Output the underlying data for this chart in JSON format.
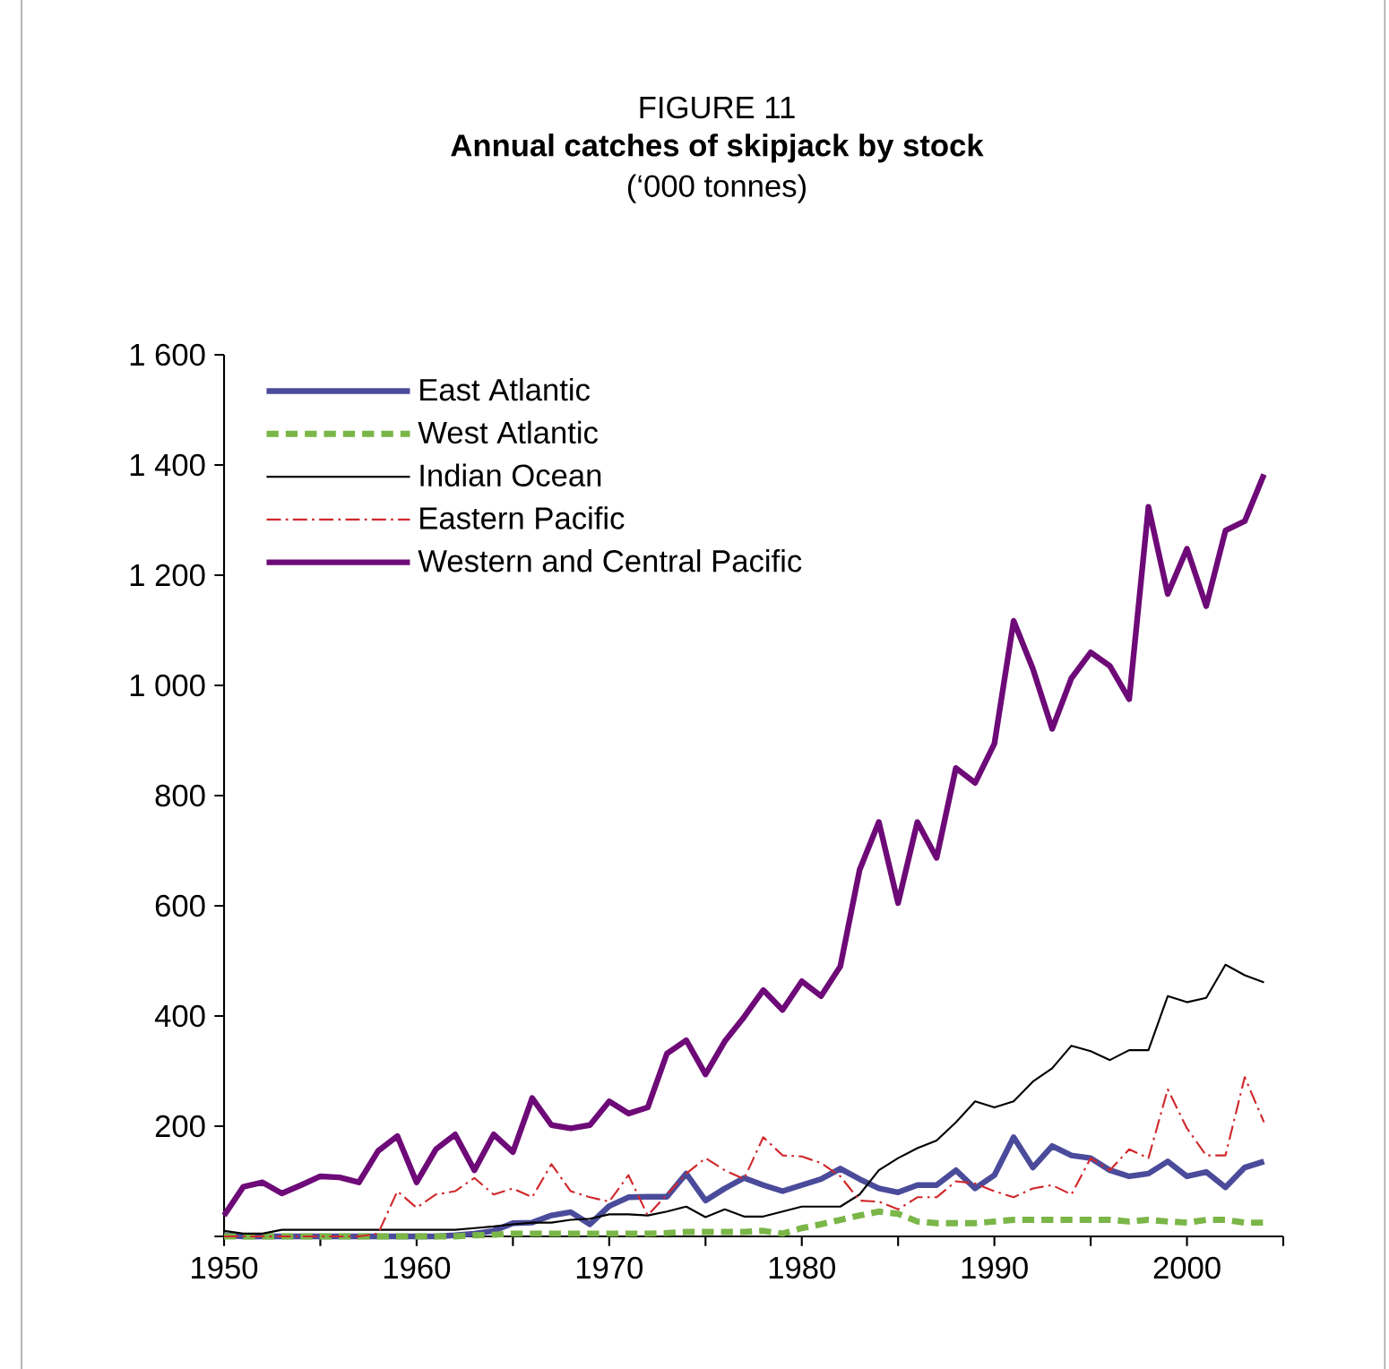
{
  "chart_data": {
    "type": "line",
    "title": "FIGURE 11",
    "subtitle": "Annual catches of skipjack by stock",
    "annotations": [
      "(‘000 tonnes)"
    ],
    "x": [
      1950,
      1951,
      1952,
      1953,
      1954,
      1955,
      1956,
      1957,
      1958,
      1959,
      1960,
      1961,
      1962,
      1963,
      1964,
      1965,
      1966,
      1967,
      1968,
      1969,
      1970,
      1971,
      1972,
      1973,
      1974,
      1975,
      1976,
      1977,
      1978,
      1979,
      1980,
      1981,
      1982,
      1983,
      1984,
      1985,
      1986,
      1987,
      1988,
      1989,
      1990,
      1991,
      1992,
      1993,
      1994,
      1995,
      1996,
      1997,
      1998,
      1999,
      2000,
      2001,
      2002,
      2003,
      2004
    ],
    "series": [
      {
        "name": "East Atlantic",
        "color": "#4b4b9b",
        "line_style": "solid",
        "values": [
          2,
          0,
          0,
          0,
          0,
          0,
          0,
          0,
          0,
          0,
          0,
          0,
          2,
          5,
          10,
          24,
          25,
          38,
          44,
          22,
          55,
          71,
          72,
          72,
          114,
          65,
          87,
          106,
          93,
          82,
          93,
          104,
          123,
          104,
          87,
          80,
          93,
          93,
          120,
          87,
          111,
          180,
          125,
          164,
          147,
          142,
          120,
          109,
          114,
          136,
          109,
          117,
          89,
          125,
          136
        ]
      },
      {
        "name": "West Atlantic",
        "color": "#7ab648",
        "line_style": "dashed",
        "values": [
          0,
          0,
          0,
          0,
          0,
          0,
          0,
          0,
          0,
          0,
          0,
          0,
          0,
          2,
          3,
          5,
          5,
          5,
          5,
          5,
          5,
          5,
          5,
          6,
          8,
          8,
          8,
          8,
          10,
          5,
          15,
          22,
          30,
          38,
          45,
          41,
          27,
          24,
          24,
          24,
          27,
          30,
          30,
          30,
          30,
          30,
          30,
          27,
          30,
          27,
          25,
          30,
          30,
          25,
          25
        ]
      },
      {
        "name": "Indian Ocean",
        "color": "#000000",
        "line_style": "solid",
        "values": [
          10,
          5,
          5,
          12,
          12,
          12,
          12,
          12,
          12,
          12,
          12,
          12,
          12,
          15,
          18,
          22,
          25,
          25,
          30,
          32,
          40,
          40,
          38,
          45,
          54,
          35,
          49,
          36,
          36,
          45,
          54,
          54,
          54,
          76,
          120,
          142,
          160,
          174,
          207,
          245,
          234,
          245,
          281,
          305,
          346,
          336,
          320,
          338,
          338,
          436,
          425,
          433,
          493,
          474,
          461
        ]
      },
      {
        "name": "Eastern Pacific",
        "color": "#d0282c",
        "line_style": "dashdot",
        "values": [
          0,
          0,
          0,
          0,
          0,
          0,
          0,
          0,
          5,
          82,
          52,
          76,
          82,
          106,
          76,
          87,
          71,
          131,
          82,
          71,
          63,
          111,
          38,
          76,
          114,
          142,
          120,
          104,
          180,
          147,
          145,
          133,
          109,
          65,
          63,
          49,
          71,
          71,
          100,
          96,
          82,
          71,
          87,
          93,
          76,
          142,
          120,
          158,
          142,
          267,
          196,
          147,
          147,
          289,
          207
        ]
      },
      {
        "name": "Western and Central Pacific",
        "color": "#6e0a78",
        "line_style": "solid",
        "values": [
          38,
          90,
          98,
          78,
          93,
          109,
          107,
          98,
          155,
          182,
          98,
          158,
          185,
          120,
          185,
          153,
          251,
          202,
          196,
          202,
          245,
          223,
          234,
          332,
          356,
          294,
          354,
          398,
          447,
          411,
          463,
          436,
          490,
          665,
          752,
          605,
          752,
          687,
          850,
          823,
          894,
          1117,
          1030,
          921,
          1013,
          1060,
          1035,
          975,
          1324,
          1166,
          1248,
          1144,
          1281,
          1298,
          1383
        ]
      }
    ],
    "xlim": [
      1950,
      2005
    ],
    "xticks": [
      1950,
      {
        "value": 1955,
        "label": null
      },
      1960,
      {
        "value": 1965,
        "label": null
      },
      1970,
      {
        "value": 1975,
        "label": null
      },
      1980,
      {
        "value": 1985,
        "label": null
      },
      1990,
      {
        "value": 1995,
        "label": null
      },
      2000,
      {
        "value": 2005,
        "label": null
      }
    ],
    "ylim": [
      0,
      1600
    ],
    "yticks": [
      {
        "value": 0,
        "label": null
      },
      200,
      400,
      600,
      800,
      {
        "value": 1000,
        "label": "1 000"
      },
      {
        "value": 1200,
        "label": "1 200"
      },
      {
        "value": 1400,
        "label": "1 400"
      },
      {
        "value": 1600,
        "label": "1 600"
      }
    ],
    "legend": "top left",
    "grid": false,
    "marker": "none"
  }
}
